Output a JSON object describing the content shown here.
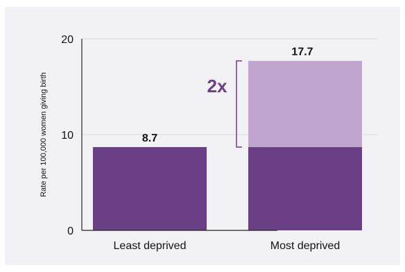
{
  "chart_data": {
    "type": "bar",
    "categories": [
      "Least deprived",
      "Most deprived"
    ],
    "values": [
      8.7,
      17.7
    ],
    "data_labels": [
      "8.7",
      "17.7"
    ],
    "ylabel": "Rate per 100,000 women giving birth",
    "ylim": [
      0,
      20
    ],
    "yticks": [
      "0",
      "10",
      "20"
    ],
    "grid": true,
    "annotation": "2x",
    "colors": {
      "bar": "#6a3f86",
      "bar_excess": "#c0a6cf",
      "annotation": "#6a3f86",
      "grid": "#d9d7e2",
      "axis": "#222222",
      "background": "#f2f1f6"
    }
  }
}
